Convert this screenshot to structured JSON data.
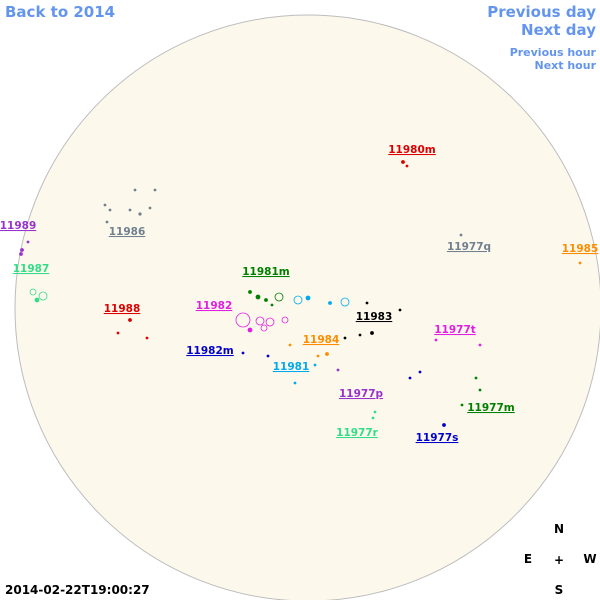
{
  "nav": {
    "back": "Back to 2014",
    "previous_day": "Previous day",
    "next_day": "Next day",
    "previous_hour": "Previous hour",
    "next_hour": "Next hour"
  },
  "regions": [
    {
      "label": "11980m",
      "color": "#dd0000"
    },
    {
      "label": "11986",
      "color": "#708090"
    },
    {
      "label": "11989",
      "color": "#9932cc"
    },
    {
      "label": "11987",
      "color": "#33dd88"
    },
    {
      "label": "11977q",
      "color": "#708090"
    },
    {
      "label": "11985",
      "color": "#ff8c00"
    },
    {
      "label": "11981m",
      "color": "#008000"
    },
    {
      "label": "11982",
      "color": "#e020e0"
    },
    {
      "label": "11988",
      "color": "#dd0000"
    },
    {
      "label": "11983",
      "color": "#000000"
    },
    {
      "label": "11977t",
      "color": "#e020e0"
    },
    {
      "label": "11984",
      "color": "#ff8c00"
    },
    {
      "label": "11982m",
      "color": "#0000cc"
    },
    {
      "label": "11981",
      "color": "#00aaee"
    },
    {
      "label": "11977p",
      "color": "#9932cc"
    },
    {
      "label": "11977m",
      "color": "#008000"
    },
    {
      "label": "11977r",
      "color": "#33dd88"
    },
    {
      "label": "11977s",
      "color": "#0000cc"
    }
  ],
  "compass": {
    "north": "N",
    "east": "E",
    "center": "+",
    "west": "W",
    "south": "S"
  },
  "timestamp": "2014-02-22T19:00:27"
}
